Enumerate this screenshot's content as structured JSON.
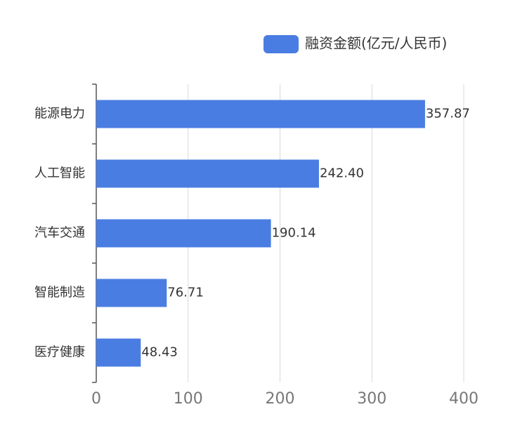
{
  "chart_data": {
    "type": "bar",
    "orientation": "horizontal",
    "categories": [
      "能源电力",
      "人工智能",
      "汽车交通",
      "智能制造",
      "医疗健康"
    ],
    "series": [
      {
        "name": "融资金额(亿元/人民币)",
        "color": "#4a7de2",
        "values": [
          357.87,
          242.4,
          190.14,
          76.71,
          48.43
        ],
        "value_labels": [
          "357.87",
          "242.40",
          "190.14",
          "76.71",
          "48.43"
        ]
      }
    ],
    "xlim": [
      0,
      400
    ],
    "xticks": [
      0,
      100,
      200,
      300,
      400
    ],
    "grid": true,
    "legend": "top-right"
  }
}
